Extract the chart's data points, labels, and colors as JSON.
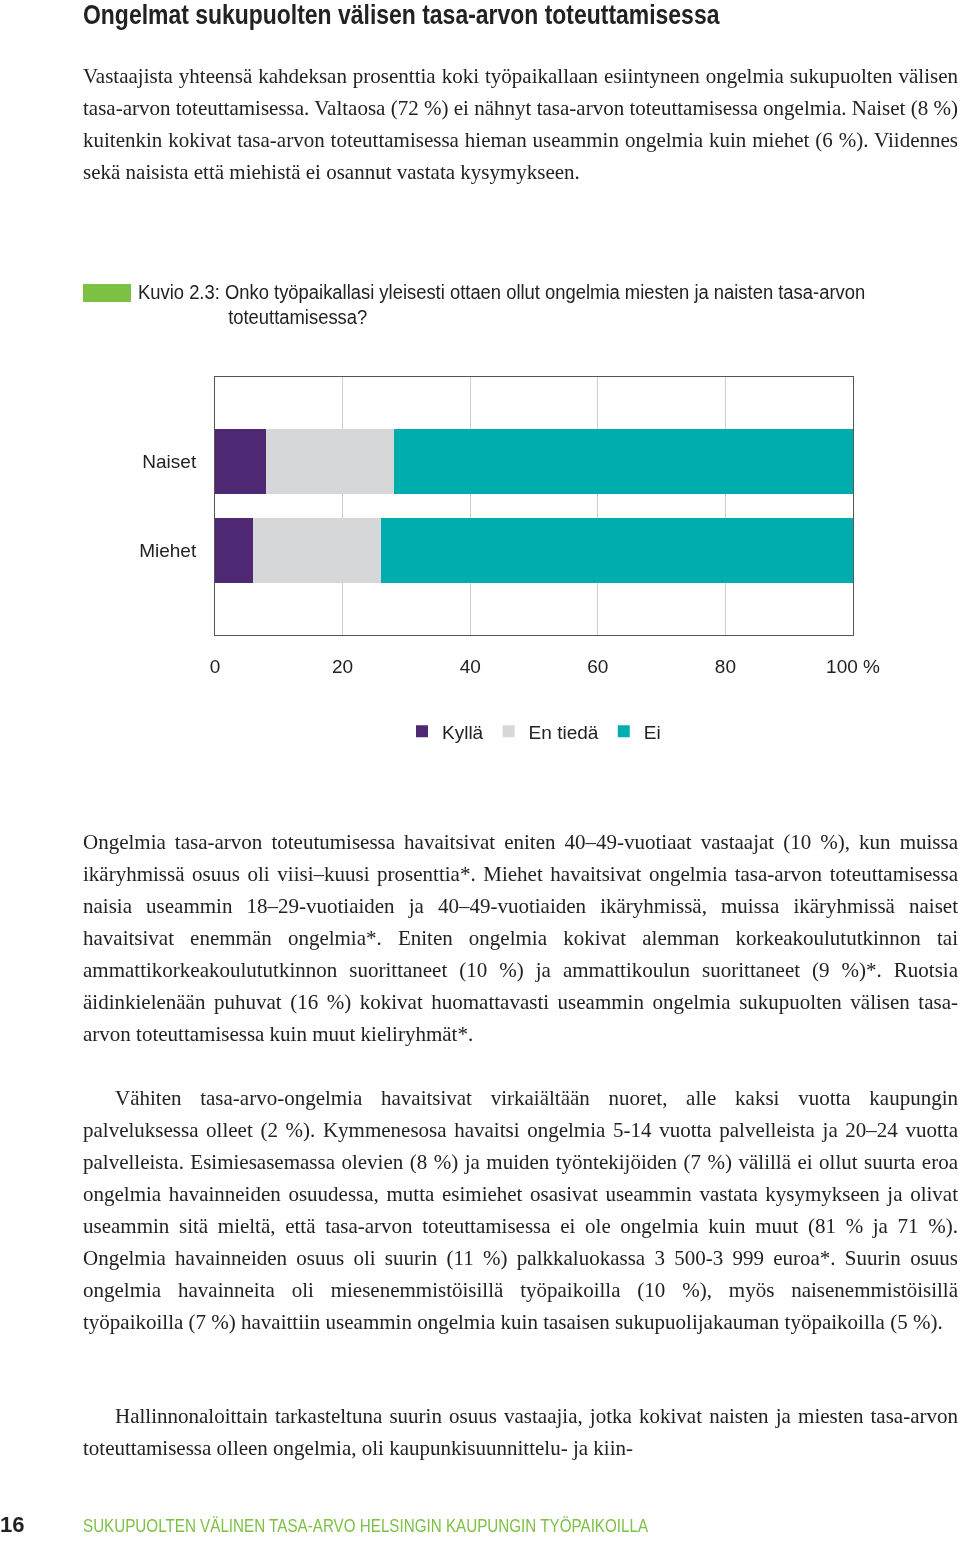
{
  "chart_data": {
    "type": "bar",
    "orientation": "horizontal",
    "stacked": true,
    "title": "Kuvio 2.3: Onko työpaikallasi yleisesti ottaen ollut ongelmia miesten ja naisten tasa-arvon toteuttamisessa?",
    "categories": [
      "Naiset",
      "Miehet"
    ],
    "series": [
      {
        "name": "Kyllä",
        "color": "#4f2873",
        "values": [
          8,
          6
        ]
      },
      {
        "name": "En tiedä",
        "color": "#d6d7d9",
        "values": [
          20,
          20
        ]
      },
      {
        "name": "Ei",
        "color": "#00adae",
        "values": [
          72,
          74
        ]
      }
    ],
    "xlim": [
      0,
      100
    ],
    "xticks": [
      0,
      20,
      40,
      60,
      80,
      {
        "value": 100,
        "label": "100 %"
      }
    ],
    "grid": "x",
    "legend": "bottom",
    "annotations": [
      "Ongelmat sukupuolten välisen tasa-arvon toteuttamisessa",
      "Vastaajista yhteensä kahdeksan prosenttia koki työpaikallaan esiintyneen ongelmia sukupuolten välisen tasa-arvon toteuttamisessa. Valtaosa (72 %) ei nähnyt tasa-arvon toteuttamisessa ongelmia. Naiset (8 %) kuitenkin kokivat tasa-arvon toteuttamisessa hieman useammin ongelmia kuin miehet (6 %). Viidennes sekä naisista että miehistä ei osannut vastata kysymykseen.",
      "Ongelmia tasa-arvon toteutumisessa havaitsivat eniten 40–49-vuotiaat vastaajat (10 %), kun muissa ikäryhmissä osuus oli viisi–kuusi prosenttia*. Miehet havaitsivat ongelmia tasa-arvon toteuttamisessa naisia useammin 18–29-vuotiaiden ja 40–49-vuotiaiden ikäryhmissä, muissa ikäryhmissä naiset havaitsivat enemmän ongelmia*. Eniten ongelmia kokivat alemman korkeakoulututkinnon tai ammattikorkeakoulututkinnon suorittaneet (10 %) ja ammattikoulun suorittaneet (9 %)*. Ruotsia äidinkielenään puhuvat (16 %) kokivat huomattavasti useammin ongelmia sukupuolten välisen tasa-arvon toteuttamisessa kuin muut kieliryhmät*.",
      "Vähiten tasa-arvo-ongelmia havaitsivat virkaiältään nuoret, alle kaksi vuotta kaupungin palveluksessa olleet (2 %). Kymmenesosa havaitsi ongelmia 5-14 vuotta palvelleista ja 20–24 vuotta palvelleista. Esimiesasemassa olevien (8 %) ja muiden työntekijöiden (7 %) välillä ei ollut suurta eroa ongelmia havainneiden osuudessa, mutta esimiehet osasivat useammin vastata kysymykseen ja olivat useammin sitä mieltä, että tasa-arvon toteuttamisessa ei ole ongelmia kuin muut (81 % ja 71 %). Ongelmia havainneiden osuus oli suurin (11 %) palkkaluokassa 3 500-3 999 euroa*. Suurin osuus ongelmia havainneita oli miesenemmistöisillä työpaikoilla (10 %), myös naisenemmistöisillä työpaikoilla (7 %) havaittiin useammin ongelmia kuin tasaisen sukupuolijakauman työpaikoilla (5 %).",
      "Hallinnonaloittain tarkasteltuna suurin osuus vastaajia, jotka kokivat naisten ja miesten tasa-arvon toteuttamisessa olleen ongelmia, oli kaupunkisuunnittelu- ja kiin-",
      "16",
      "SUKUPUOLTEN VÄLINEN TASA-ARVO HELSINGIN KAUPUNGIN TYÖPAIKOILLA"
    ]
  }
}
